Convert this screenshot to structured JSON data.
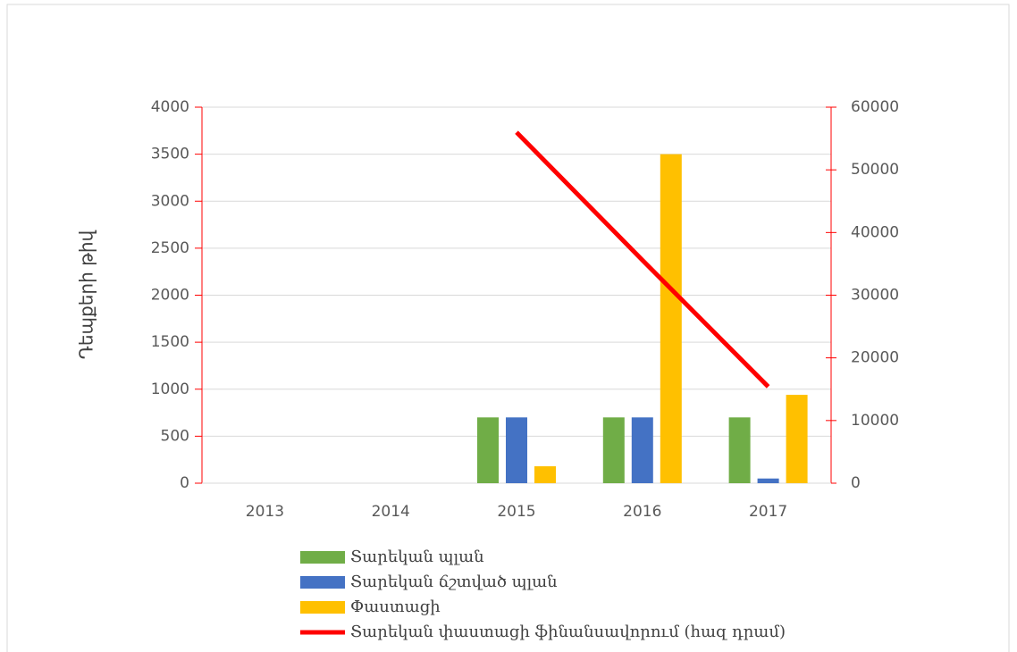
{
  "chart_data": {
    "type": "bar_line",
    "y_label": "Դեպքերի թիվ",
    "categories": [
      "2013",
      "2014",
      "2015",
      "2016",
      "2017"
    ],
    "series": [
      {
        "name": "Տարեկան պլան",
        "color": "#70ad47",
        "type": "bar",
        "values": [
          null,
          null,
          700,
          700,
          700
        ]
      },
      {
        "name": "Տարեկան ճշտված պլան",
        "color": "#4472c4",
        "type": "bar",
        "values": [
          null,
          null,
          700,
          700,
          50
        ]
      },
      {
        "name": "Փաստացի",
        "color": "#ffc000",
        "type": "bar",
        "values": [
          null,
          null,
          180,
          3500,
          940
        ]
      },
      {
        "name": "Տարեկան փաստացի ֆինանսավորում (հազ դրամ)",
        "color": "#ff0000",
        "type": "line",
        "axis": "y2",
        "values": [
          null,
          null,
          56000,
          35600,
          15400
        ]
      }
    ],
    "ylim": [
      0,
      4000
    ],
    "yticks": [
      0,
      500,
      1000,
      1500,
      2000,
      2500,
      3000,
      3500,
      4000
    ],
    "y2lim": [
      0,
      60000
    ],
    "y2ticks": [
      0,
      10000,
      20000,
      30000,
      40000,
      50000,
      60000
    ],
    "grid": true,
    "legend": "bottom"
  }
}
